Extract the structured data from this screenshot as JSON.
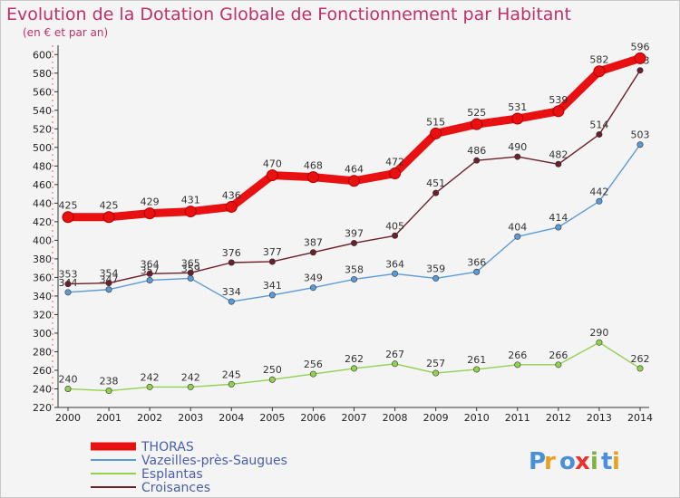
{
  "title": "Evolution de la Dotation Globale de Fonctionnement par Habitant",
  "subtitle": "(en € et par an)",
  "logo_text": "Proxiti",
  "chart_data": {
    "type": "line",
    "title": "Evolution de la Dotation Globale de Fonctionnement par Habitant",
    "subtitle": "(en € et par an)",
    "xlabel": "",
    "ylabel": "",
    "ylim": [
      220,
      600
    ],
    "yticks": [
      220,
      240,
      260,
      280,
      300,
      320,
      340,
      360,
      380,
      400,
      420,
      440,
      460,
      480,
      500,
      520,
      540,
      560,
      580,
      600
    ],
    "x": [
      "2000",
      "2001",
      "2002",
      "2003",
      "2004",
      "2005",
      "2006",
      "2007",
      "2008",
      "2009",
      "2010",
      "2011",
      "2012",
      "2013",
      "2014"
    ],
    "grid": false,
    "legend_position": "bottom-left",
    "series": [
      {
        "name": "THORAS",
        "color": "#e81010",
        "values": [
          425,
          425,
          429,
          431,
          436,
          470,
          468,
          464,
          472,
          515,
          525,
          531,
          539,
          582,
          596
        ]
      },
      {
        "name": "Vazeilles-près-Saugues",
        "color": "#5b9bd5",
        "values": [
          344,
          347,
          357,
          359,
          334,
          341,
          349,
          358,
          364,
          359,
          366,
          404,
          414,
          442,
          503
        ]
      },
      {
        "name": "Esplantas",
        "color": "#92d050",
        "values": [
          240,
          238,
          242,
          242,
          245,
          250,
          256,
          262,
          267,
          257,
          261,
          266,
          266,
          290,
          262
        ]
      },
      {
        "name": "Croisances",
        "color": "#6b1f2a",
        "values": [
          353,
          354,
          364,
          365,
          376,
          377,
          387,
          397,
          405,
          451,
          486,
          490,
          482,
          514,
          583
        ]
      }
    ]
  }
}
